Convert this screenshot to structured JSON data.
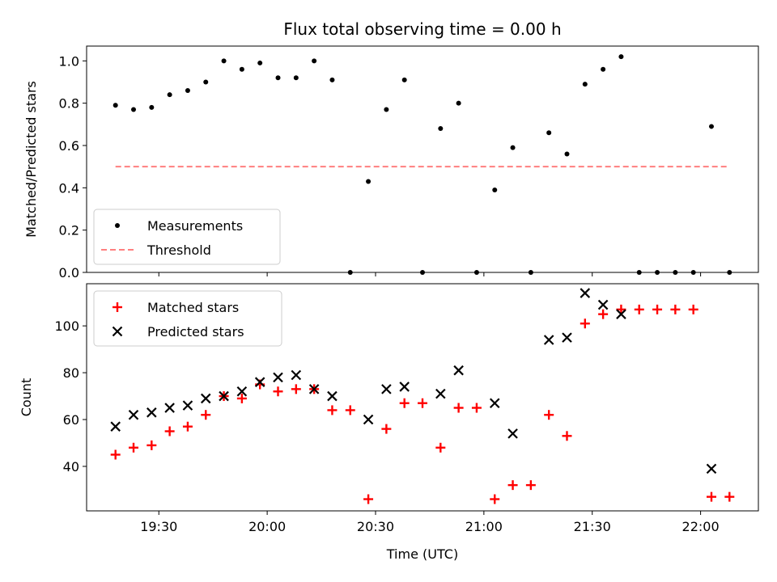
{
  "chart_data": [
    {
      "type": "scatter",
      "title": "Flux total observing time = 0.00 h",
      "xlabel": "",
      "ylabel": "Matched/Predicted stars",
      "ylim": [
        0,
        1.07
      ],
      "yticks": [
        "0.0",
        "0.2",
        "0.4",
        "0.6",
        "0.8",
        "1.0"
      ],
      "ytick_values": [
        0,
        0.2,
        0.4,
        0.6,
        0.8,
        1.0
      ],
      "xticks_shared": true,
      "legend": "lower-left",
      "series": [
        {
          "name": "Measurements",
          "marker": "dot",
          "color": "#000000",
          "x": [
            "19:18",
            "19:23",
            "19:28",
            "19:33",
            "19:38",
            "19:43",
            "19:48",
            "19:53",
            "19:58",
            "20:03",
            "20:08",
            "20:13",
            "20:18",
            "20:28",
            "20:33",
            "20:38",
            "20:48",
            "20:53",
            "21:03",
            "21:08",
            "21:18",
            "21:23",
            "21:28",
            "21:33",
            "21:38",
            "22:03"
          ],
          "y": [
            0.79,
            0.77,
            0.78,
            0.84,
            0.86,
            0.9,
            1.0,
            0.96,
            0.99,
            0.92,
            0.92,
            1.0,
            0.91,
            0.43,
            0.77,
            0.91,
            0.68,
            0.8,
            0.39,
            0.59,
            0.66,
            0.56,
            0.89,
            0.96,
            1.02,
            0.69
          ],
          "zero_x": [
            "20:23",
            "20:43",
            "20:58",
            "21:13",
            "21:43",
            "21:48",
            "21:53",
            "21:58",
            "22:08"
          ]
        },
        {
          "name": "Threshold",
          "marker": "dashed-line",
          "color": "#ff7f7f",
          "x": [
            "19:18",
            "22:08"
          ],
          "y": [
            0.5,
            0.5
          ]
        }
      ]
    },
    {
      "type": "scatter",
      "title": "",
      "xlabel": "Time (UTC)",
      "ylabel": "Count",
      "ylim": [
        21,
        118
      ],
      "yticks": [
        "40",
        "60",
        "80",
        "100"
      ],
      "ytick_values": [
        40,
        60,
        80,
        100
      ],
      "xticks": [
        "19:30",
        "20:00",
        "20:30",
        "21:00",
        "21:30",
        "22:00"
      ],
      "legend": "upper-left",
      "series": [
        {
          "name": "Matched stars",
          "marker": "plus",
          "color": "#ff0000",
          "x": [
            "19:18",
            "19:23",
            "19:28",
            "19:33",
            "19:38",
            "19:43",
            "19:48",
            "19:53",
            "19:58",
            "20:03",
            "20:08",
            "20:13",
            "20:18",
            "20:23",
            "20:28",
            "20:33",
            "20:38",
            "20:43",
            "20:48",
            "20:53",
            "20:58",
            "21:03",
            "21:08",
            "21:13",
            "21:18",
            "21:23",
            "21:28",
            "21:33",
            "21:38",
            "21:43",
            "21:48",
            "21:53",
            "21:58",
            "22:03",
            "22:08"
          ],
          "y": [
            45,
            48,
            49,
            55,
            57,
            62,
            70,
            69,
            75,
            72,
            73,
            73,
            64,
            64,
            26,
            56,
            67,
            67,
            48,
            65,
            65,
            26,
            32,
            32,
            62,
            53,
            101,
            105,
            107,
            107,
            107,
            107,
            107,
            27,
            27
          ]
        },
        {
          "name": "Predicted stars",
          "marker": "x",
          "color": "#000000",
          "x": [
            "19:18",
            "19:23",
            "19:28",
            "19:33",
            "19:38",
            "19:43",
            "19:48",
            "19:53",
            "19:58",
            "20:03",
            "20:08",
            "20:13",
            "20:18",
            "20:28",
            "20:33",
            "20:38",
            "20:48",
            "20:53",
            "21:03",
            "21:08",
            "21:18",
            "21:23",
            "21:28",
            "21:33",
            "21:38",
            "22:03"
          ],
          "y": [
            57,
            62,
            63,
            65,
            66,
            69,
            70,
            72,
            76,
            78,
            79,
            73,
            70,
            60,
            73,
            74,
            71,
            81,
            67,
            54,
            94,
            95,
            114,
            109,
            105,
            39
          ]
        }
      ]
    }
  ]
}
